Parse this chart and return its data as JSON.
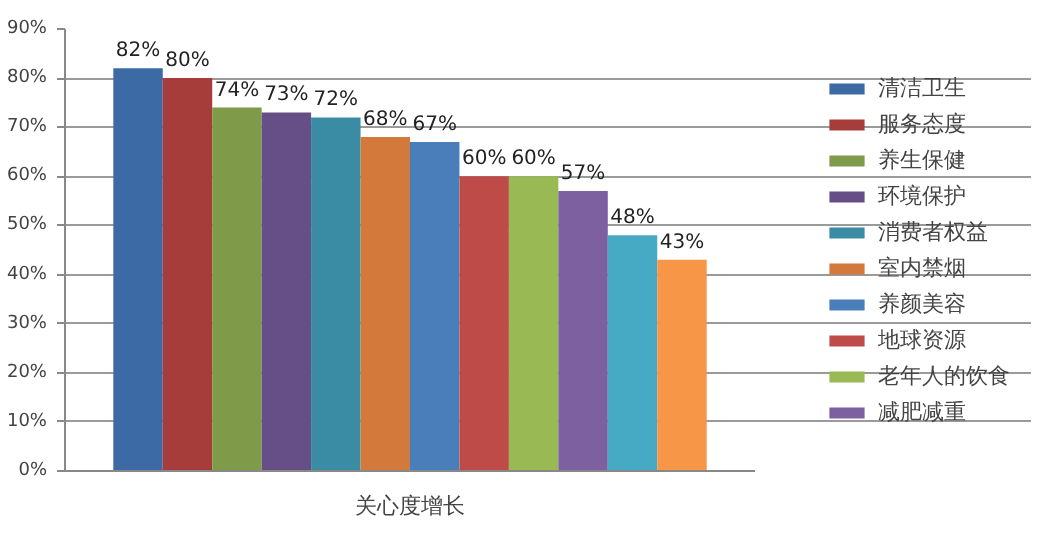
{
  "chart_data": {
    "type": "bar",
    "categories": [
      "关心度增长"
    ],
    "ylim": [
      0,
      90
    ],
    "yticks": [
      {
        "value": 0,
        "label": "0%"
      },
      {
        "value": 10,
        "label": "10%"
      },
      {
        "value": 20,
        "label": "20%"
      },
      {
        "value": 30,
        "label": "30%"
      },
      {
        "value": 40,
        "label": "40%"
      },
      {
        "value": 50,
        "label": "50%"
      },
      {
        "value": 60,
        "label": "60%"
      },
      {
        "value": 70,
        "label": "70%"
      },
      {
        "value": 80,
        "label": "80%"
      },
      {
        "value": 90,
        "label": "90%"
      }
    ],
    "grid": "y",
    "legend": "right",
    "series": [
      {
        "name": "清洁卫生",
        "color": "#3c6aa5",
        "values": [
          82
        ],
        "value_labels": [
          "82%"
        ]
      },
      {
        "name": "服务态度",
        "color": "#a63d3b",
        "values": [
          80
        ],
        "value_labels": [
          "80%"
        ]
      },
      {
        "name": "养生保健",
        "color": "#7f9a48",
        "values": [
          74
        ],
        "value_labels": [
          "74%"
        ]
      },
      {
        "name": "环境保护",
        "color": "#664f86",
        "values": [
          73
        ],
        "value_labels": [
          "73%"
        ]
      },
      {
        "name": "消费者权益",
        "color": "#3a8ca4",
        "values": [
          72
        ],
        "value_labels": [
          "72%"
        ]
      },
      {
        "name": "室内禁烟",
        "color": "#d2793b",
        "values": [
          68
        ],
        "value_labels": [
          "68%"
        ]
      },
      {
        "name": "养颜美容",
        "color": "#4a7ebb",
        "values": [
          67
        ],
        "value_labels": [
          "67%"
        ]
      },
      {
        "name": "地球资源",
        "color": "#be4b48",
        "values": [
          60
        ],
        "value_labels": [
          "60%"
        ]
      },
      {
        "name": "老年人的饮食",
        "color": "#98b954",
        "values": [
          60
        ],
        "value_labels": [
          "60%"
        ]
      },
      {
        "name": "减肥减重",
        "color": "#7d60a0",
        "values": [
          57
        ],
        "value_labels": [
          "57%"
        ]
      },
      {
        "color": "#46aac5",
        "values": [
          48
        ],
        "value_labels": [
          "48%"
        ]
      },
      {
        "color": "#f79646",
        "values": [
          43
        ],
        "value_labels": [
          "43%"
        ]
      }
    ]
  }
}
